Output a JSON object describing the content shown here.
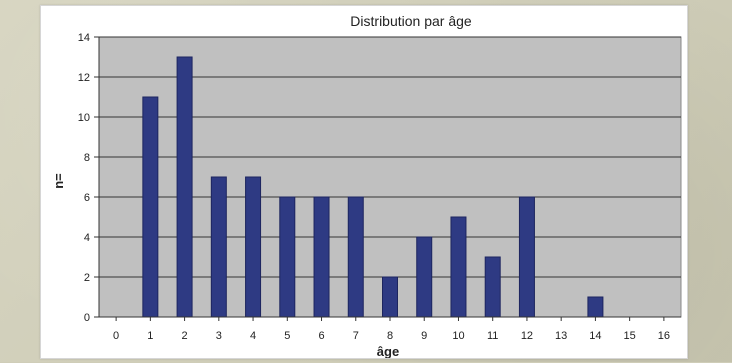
{
  "chart_data": {
    "type": "bar",
    "title": "Distribution par âge",
    "xlabel": "âge",
    "ylabel": "n=",
    "categories": [
      "0",
      "1",
      "2",
      "3",
      "4",
      "5",
      "6",
      "7",
      "8",
      "9",
      "10",
      "11",
      "12",
      "13",
      "14",
      "15",
      "16"
    ],
    "values": [
      0,
      11,
      13,
      7,
      7,
      6,
      6,
      6,
      2,
      4,
      5,
      3,
      6,
      0,
      1,
      0,
      0
    ],
    "ylim": [
      0,
      14
    ],
    "yticks": [
      "0",
      "2",
      "4",
      "6",
      "8",
      "10",
      "12",
      "14"
    ],
    "grid": true,
    "legend": "none",
    "colors": {
      "bar": "#2e3a83",
      "bar_edge": "#1d255f",
      "plot_bg": "#c0c0c0",
      "grid": "#333333"
    }
  }
}
